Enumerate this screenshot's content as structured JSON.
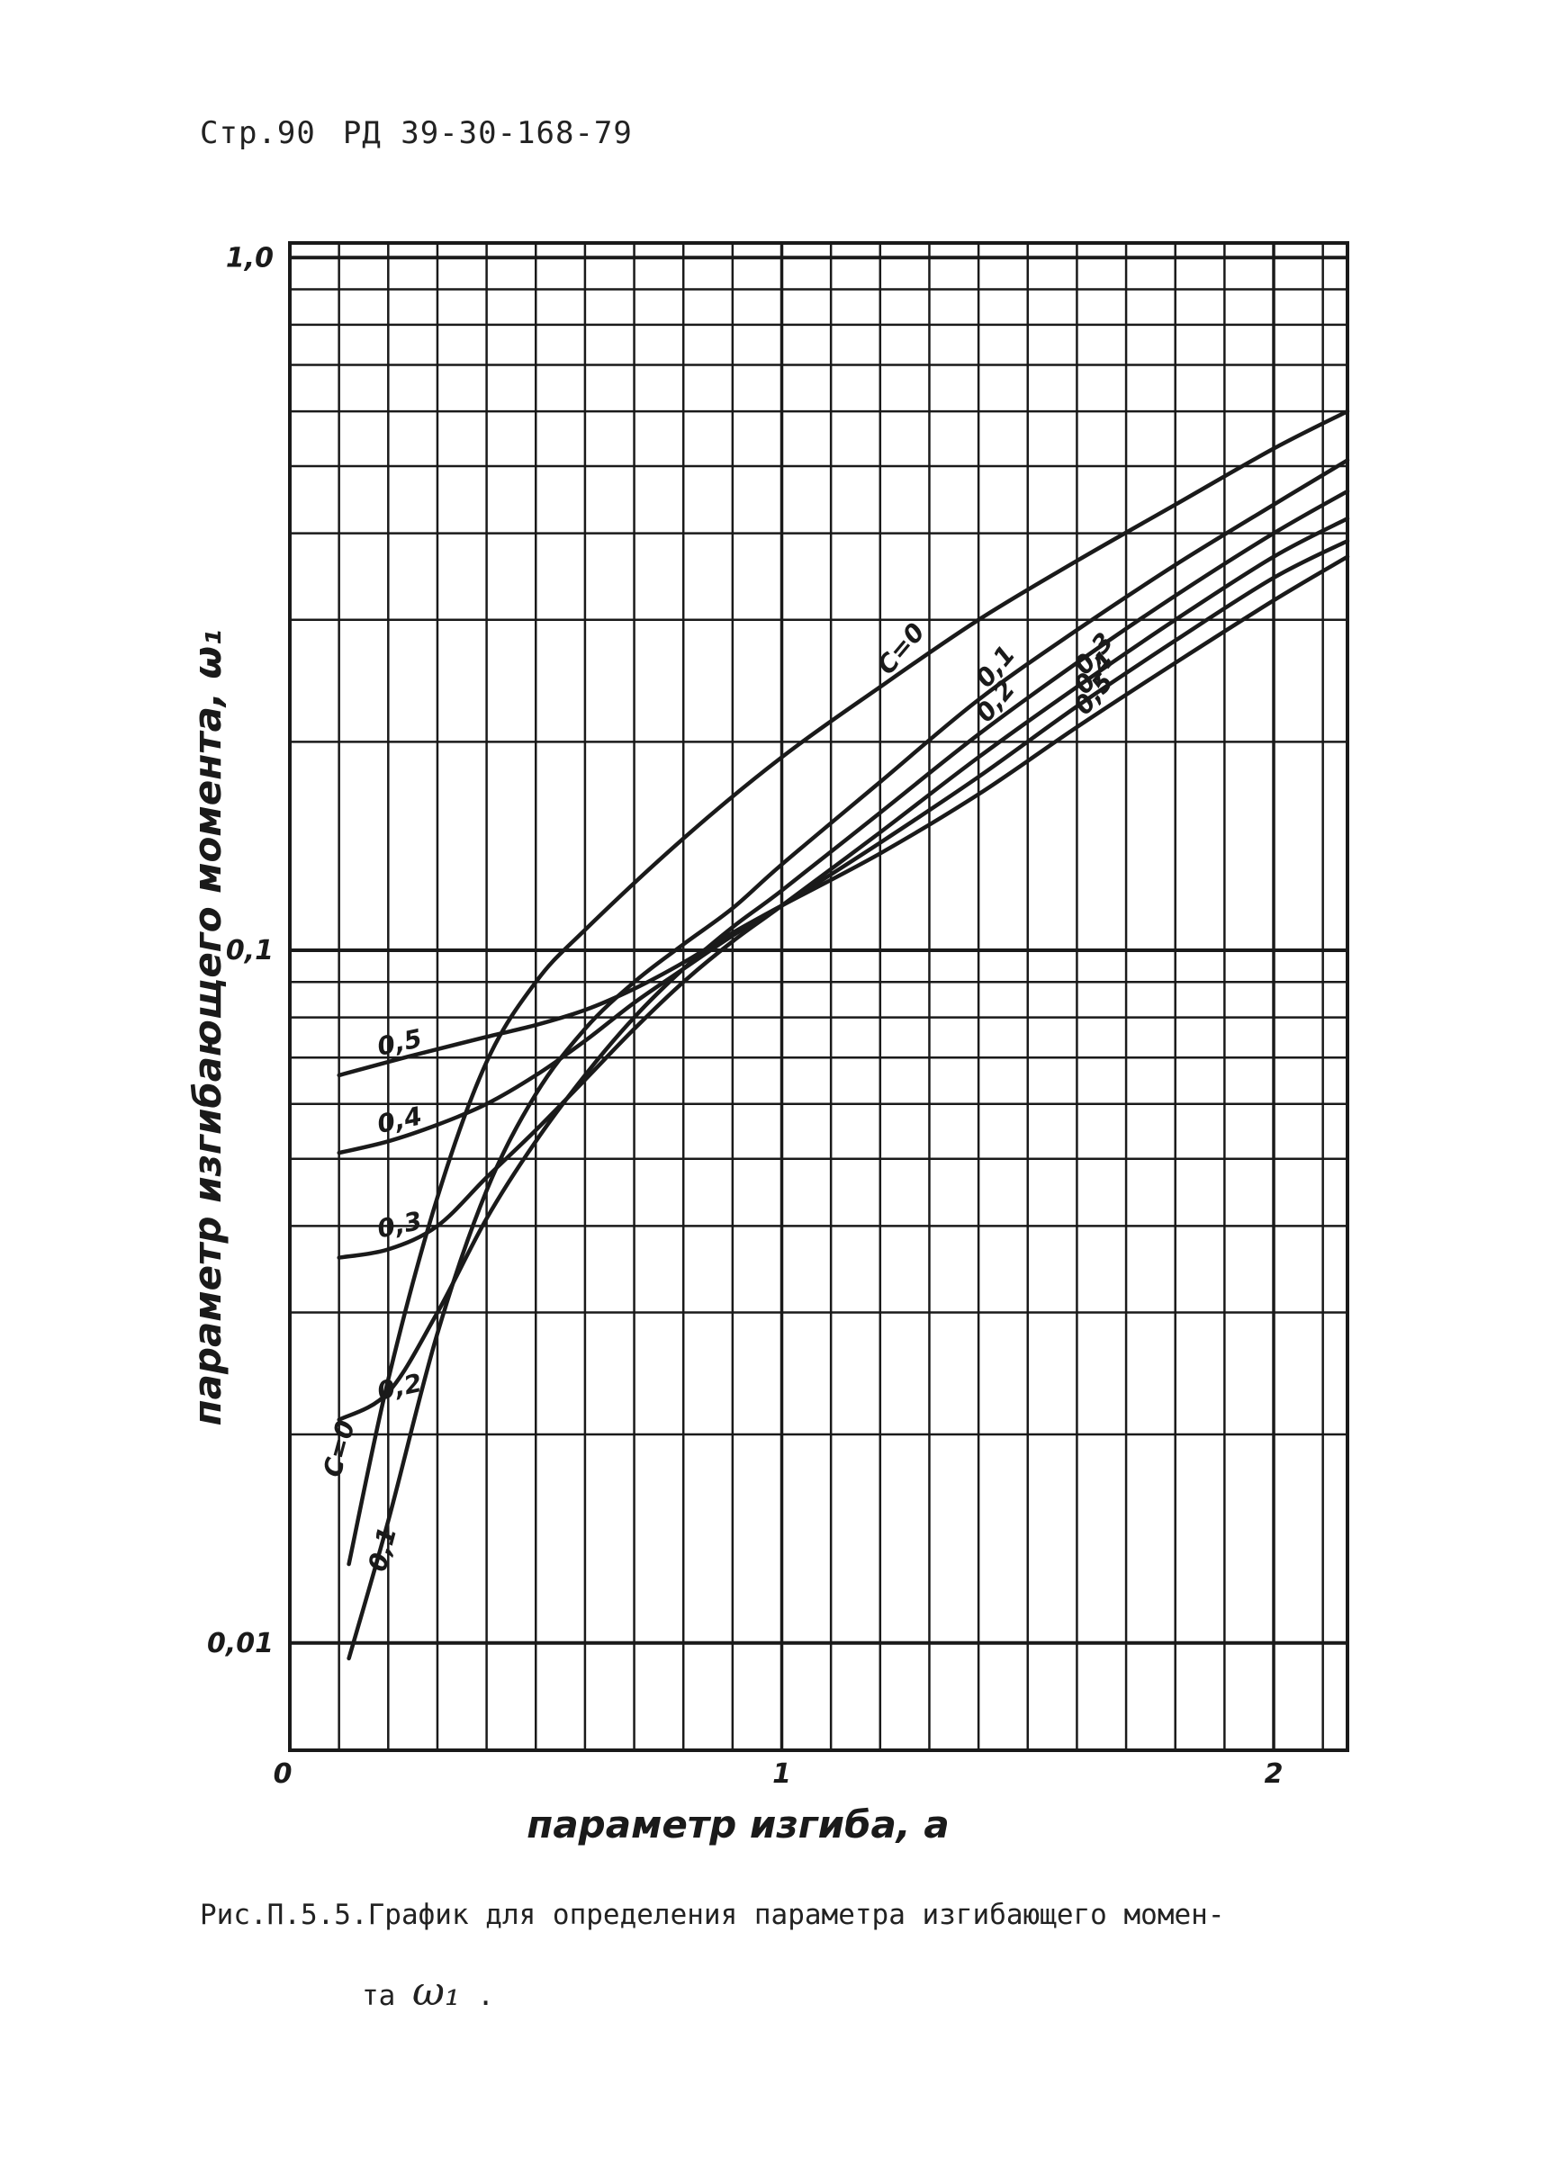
{
  "header": {
    "page": "Стр.90",
    "doc_code": "РД 39-30-168-79"
  },
  "caption": {
    "line1": "Рис.П.5.5.График для определения параметра изгибающего момен-",
    "line2_prefix": "та",
    "symbol": "ω₁",
    "line2_suffix": "."
  },
  "chart_data": {
    "type": "line",
    "title": "",
    "xlabel": "параметр изгиба, a",
    "ylabel": "параметр изгибающего момента, ω₁",
    "xlim": [
      0,
      2.15
    ],
    "ylim": [
      0.007,
      1.05
    ],
    "yscale": "log",
    "grid": true,
    "x_ticks": [
      {
        "value": 0,
        "label": "0"
      },
      {
        "value": 1,
        "label": "1"
      },
      {
        "value": 2,
        "label": "2"
      }
    ],
    "y_ticks": [
      {
        "value": 0.01,
        "label": "0,01"
      },
      {
        "value": 0.1,
        "label": "0,1"
      },
      {
        "value": 1.0,
        "label": "1,0"
      }
    ],
    "series": [
      {
        "name": "C=0",
        "label_text": "C=0",
        "x": [
          0.12,
          0.2,
          0.3,
          0.4,
          0.5,
          0.6,
          0.8,
          1.0,
          1.2,
          1.4,
          1.6,
          1.8,
          2.0,
          2.15
        ],
        "y": [
          0.013,
          0.024,
          0.044,
          0.069,
          0.09,
          0.107,
          0.145,
          0.19,
          0.24,
          0.3,
          0.365,
          0.44,
          0.53,
          0.6
        ]
      },
      {
        "name": "0.1",
        "label_text": "0,1",
        "x": [
          0.12,
          0.2,
          0.3,
          0.4,
          0.5,
          0.6,
          0.7,
          0.8,
          0.9,
          1.0,
          1.2,
          1.4,
          1.6,
          1.8,
          2.0,
          2.15
        ],
        "y": [
          0.0095,
          0.015,
          0.028,
          0.045,
          0.062,
          0.077,
          0.09,
          0.102,
          0.115,
          0.133,
          0.175,
          0.23,
          0.29,
          0.36,
          0.44,
          0.51
        ]
      },
      {
        "name": "0.2",
        "label_text": "0,2",
        "x": [
          0.1,
          0.2,
          0.3,
          0.4,
          0.5,
          0.6,
          0.7,
          0.8,
          0.9,
          1.0,
          1.2,
          1.4,
          1.6,
          1.8,
          2.0,
          2.15
        ],
        "y": [
          0.021,
          0.023,
          0.03,
          0.041,
          0.053,
          0.066,
          0.08,
          0.094,
          0.108,
          0.122,
          0.158,
          0.205,
          0.26,
          0.325,
          0.4,
          0.46
        ]
      },
      {
        "name": "0.3",
        "label_text": "0,3",
        "x": [
          0.1,
          0.2,
          0.3,
          0.4,
          0.5,
          0.6,
          0.7,
          0.8,
          0.9,
          1.0,
          1.2,
          1.4,
          1.6,
          1.8,
          2.0,
          2.15
        ],
        "y": [
          0.036,
          0.037,
          0.04,
          0.047,
          0.055,
          0.065,
          0.077,
          0.09,
          0.103,
          0.116,
          0.148,
          0.19,
          0.24,
          0.3,
          0.37,
          0.42
        ]
      },
      {
        "name": "0.4",
        "label_text": "0,4",
        "x": [
          0.1,
          0.2,
          0.3,
          0.4,
          0.5,
          0.6,
          0.7,
          0.8,
          0.9,
          1.0,
          1.2,
          1.4,
          1.6,
          1.8,
          2.0,
          2.15
        ],
        "y": [
          0.051,
          0.053,
          0.056,
          0.06,
          0.066,
          0.074,
          0.084,
          0.094,
          0.105,
          0.116,
          0.143,
          0.178,
          0.225,
          0.28,
          0.345,
          0.39
        ]
      },
      {
        "name": "0.5",
        "label_text": "0,5",
        "x": [
          0.1,
          0.2,
          0.3,
          0.4,
          0.5,
          0.6,
          0.7,
          0.8,
          0.9,
          1.0,
          1.2,
          1.4,
          1.6,
          1.8,
          2.0,
          2.15
        ],
        "y": [
          0.066,
          0.069,
          0.072,
          0.075,
          0.078,
          0.082,
          0.088,
          0.096,
          0.106,
          0.116,
          0.138,
          0.168,
          0.21,
          0.26,
          0.32,
          0.37
        ]
      }
    ]
  },
  "colors": {
    "ink": "#1a1a1a",
    "paper": "#ffffff"
  }
}
